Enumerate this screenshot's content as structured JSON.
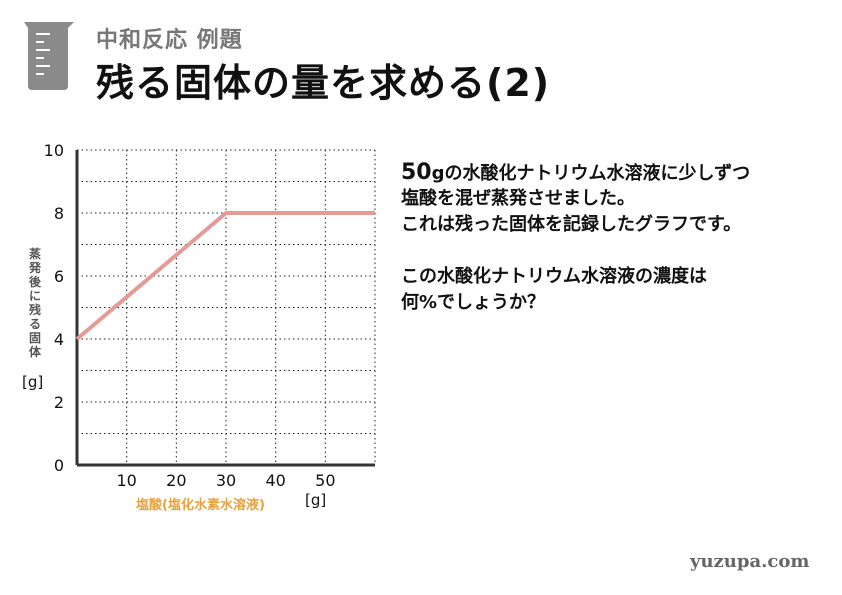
{
  "header": {
    "subtitle": "中和反応 例題",
    "title": "残る固体の量を求める(2)"
  },
  "chart_data": {
    "type": "line",
    "title": "",
    "xlabel": "塩酸(塩化水素水溶液)",
    "xunit": "[g]",
    "ylabel": "蒸発後に残る固体",
    "yunit": "[g]",
    "xlim": [
      0,
      60
    ],
    "ylim": [
      0,
      10
    ],
    "x_ticks": [
      10,
      20,
      30,
      40,
      50
    ],
    "y_ticks": [
      0,
      2,
      4,
      6,
      8,
      10
    ],
    "grid": "dotted",
    "series": [
      {
        "x": [
          0,
          30,
          60
        ],
        "y": [
          4,
          8,
          8
        ]
      }
    ],
    "line_color": "#e59b95"
  },
  "question": {
    "line1_num": "50",
    "line1_rest": "gの水酸化ナトリウム水溶液に少しずつ",
    "line2": "塩酸を混ぜ蒸発させました。",
    "line3": "これは残った固体を記録したグラフです。",
    "line4": "この水酸化ナトリウム水溶液の濃度は",
    "line5": "何%でしょうか？"
  },
  "watermark": "yuzupa.com"
}
